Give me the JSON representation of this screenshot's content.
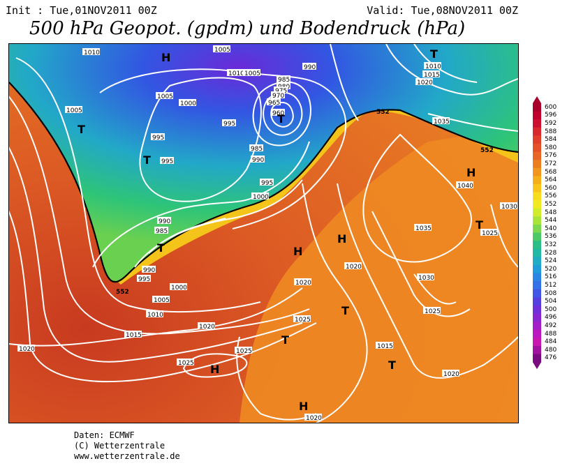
{
  "header": {
    "init": "Init : Tue,01NOV2011 00Z",
    "valid": "Valid: Tue,08NOV2011 00Z",
    "title": "500 hPa Geopot. (gpdm) und Bodendruck (hPa)"
  },
  "legend": {
    "values": [
      "600",
      "596",
      "592",
      "588",
      "584",
      "580",
      "576",
      "572",
      "568",
      "564",
      "560",
      "556",
      "552",
      "548",
      "544",
      "540",
      "536",
      "532",
      "528",
      "524",
      "520",
      "516",
      "512",
      "508",
      "504",
      "500",
      "496",
      "492",
      "488",
      "484",
      "480",
      "476"
    ],
    "colors": [
      "#a8002a",
      "#c0002e",
      "#cc1030",
      "#d82a2e",
      "#e0402a",
      "#e45028",
      "#e86628",
      "#ec7e22",
      "#f0961c",
      "#f4ae18",
      "#f8c61a",
      "#f8dc20",
      "#f0ea24",
      "#d0ec2c",
      "#a8e43a",
      "#7cd84e",
      "#4cc868",
      "#2cbe86",
      "#22b8a6",
      "#20acc4",
      "#209cd8",
      "#2a86e2",
      "#3470e6",
      "#4256e6",
      "#5440e0",
      "#6e30d8",
      "#8a26d0",
      "#a41ec8",
      "#bc18c0",
      "#c818b0",
      "#a014a0",
      "#780c80"
    ]
  },
  "map": {
    "pressure_labels": [
      "1010",
      "1005",
      "1000",
      "995",
      "990",
      "985",
      "980",
      "975",
      "970",
      "965",
      "960",
      "1015",
      "1020",
      "1025",
      "1030",
      "1035",
      "1040"
    ],
    "geopot_labels": [
      "552",
      "552",
      "552"
    ],
    "highs": [
      "H",
      "H",
      "H",
      "H",
      "H",
      "H"
    ],
    "lows": [
      "T",
      "T",
      "T",
      "T",
      "T",
      "T",
      "T",
      "T",
      "T"
    ]
  },
  "colors": {
    "isobar": "#ffffff",
    "contour_552": "#000000"
  },
  "credits": {
    "line1": "Daten: ECMWF",
    "line2": "(C) Wetterzentrale",
    "line3": "www.wetterzentrale.de"
  }
}
